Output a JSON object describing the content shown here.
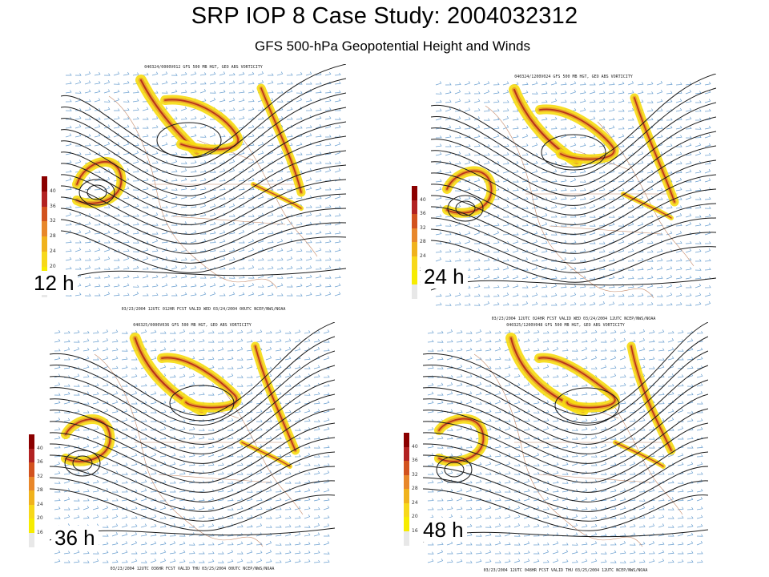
{
  "title": "SRP IOP 8 Case Study: 2004032312",
  "subtitle": "GFS 500-hPa Geopotential Height and Winds",
  "colorbar": {
    "ticks": [
      "40",
      "36",
      "32",
      "28",
      "24",
      "20",
      "16"
    ],
    "colors": [
      "#8b0000",
      "#b22222",
      "#d2521e",
      "#e8872a",
      "#f0b21c",
      "#f7d81a",
      "#f6ec00",
      "#e8e8e8"
    ]
  },
  "panels": [
    {
      "label": "12 h",
      "header": "040324/0000V012 GFS 500 MB HGT, GEO ABS VORTICITY",
      "footer": "03/23/2004 12UTC 012HR FCST VALID WED 03/24/2004 00UTC  NCEP/NWS/NOAA"
    },
    {
      "label": "24 h",
      "header": "040324/1200V024 GFS 500 MB HGT, GEO ABS VORTICITY",
      "footer": "03/23/2004 12UTC 024HR FCST VALID WED 03/24/2004 12UTC  NCEP/NWS/NOAA"
    },
    {
      "label": "36 h",
      "header": "040325/0000V036 GFS 500 MB HGT, GEO ABS VORTICITY",
      "footer": "03/23/2004 12UTC 036HR FCST VALID THU 03/25/2004 00UTC  NCEP/NWS/NOAA"
    },
    {
      "label": "48 h",
      "header": "040325/1200V048 GFS 500 MB HGT, GEO ABS VORTICITY",
      "footer": "03/23/2004 12UTC 048HR FCST VALID THU 03/25/2004 12UTC  NCEP/NWS/NOAA"
    }
  ]
}
